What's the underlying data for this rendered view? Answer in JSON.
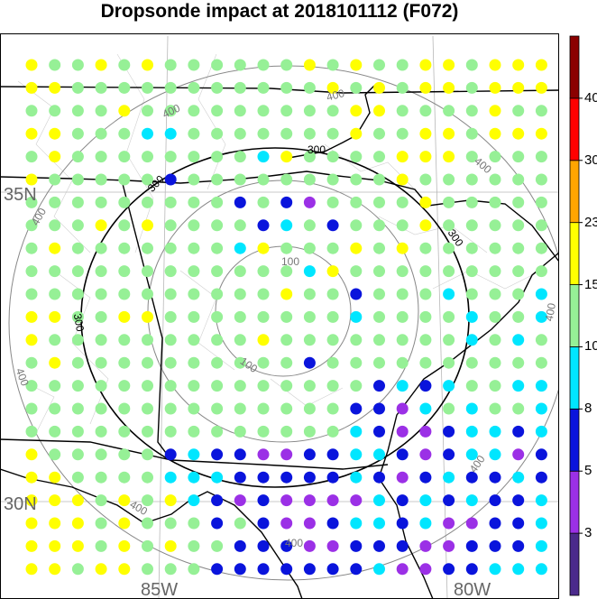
{
  "title": "Dropsonde impact at 2018101112 (F072)",
  "colorbar": {
    "labels": [
      "3",
      "5",
      "8",
      "10",
      "15",
      "23",
      "30",
      "40"
    ],
    "colors": [
      "#4b2a8c",
      "#9b30e6",
      "#0a14dc",
      "#00e6ff",
      "#96f096",
      "#ffff00",
      "#ffa500",
      "#ff0000",
      "#8b0000"
    ]
  },
  "lat_labels": [
    "35N",
    "30N"
  ],
  "lon_labels": [
    "85W",
    "80W"
  ],
  "contour_labels": {
    "black": [
      "300",
      "300",
      "300",
      "300"
    ],
    "gray": [
      "100",
      "100",
      "400",
      "400",
      "400",
      "400",
      "400",
      "400",
      "400",
      "400",
      "400"
    ]
  },
  "grid": {
    "rows": [
      "YGGYGYGGGGGGYGYGGYYGYYY",
      "YYGGGGGGGGGGGYGYGYYGYYY",
      "GGGGYGGGGGGGGGYYGGGGYGG",
      "YYGGGCCGGGGGGGYGGYYGYYY",
      "GYGGGGGGGGCYGGGGYYYGGGG",
      "YGGGGGBGGGGGGGGGYGGGGGG",
      "GGGGGGGGGBGBVGGGGYGGGGG",
      "GGGYGYGGGGBCGBGGGYGGGGG",
      "GYGGGGGGGCYGGGYGYGGGGGG",
      "GGGGGGGGGGGGCYGGGGGGGGG",
      "GGGGGGGGGGGYGGBGGGCGGGC",
      "YYGGYYGGGGGGGGCGGGGCGGC",
      "YGGGGGGGGGYGGGGGGGGCGCG",
      "GYGGGGGGGGGGBGGGGGGGGGG",
      "GGGGGGGGGGGGGGGBCBCGGCC",
      "GGGGGGGGGGGGGGBBVCGCGGC",
      "GGGGGGGGGGGGGGCBVVBCCBC",
      "YGGGGGBCBBVVBBCCBVBCCVB",
      "YYGGGGCCCBBBBBCBVBCBBCB",
      "YYYGYGYCBVBVVVVCBCBCBBC",
      "YYYGYGGGBGBVVBCCBCVVBBC",
      "YYYGYGYGGBBBVVBBBVVBBBC",
      "YYGYYGGGBBBBBBBCVVBBCCC"
    ]
  }
}
